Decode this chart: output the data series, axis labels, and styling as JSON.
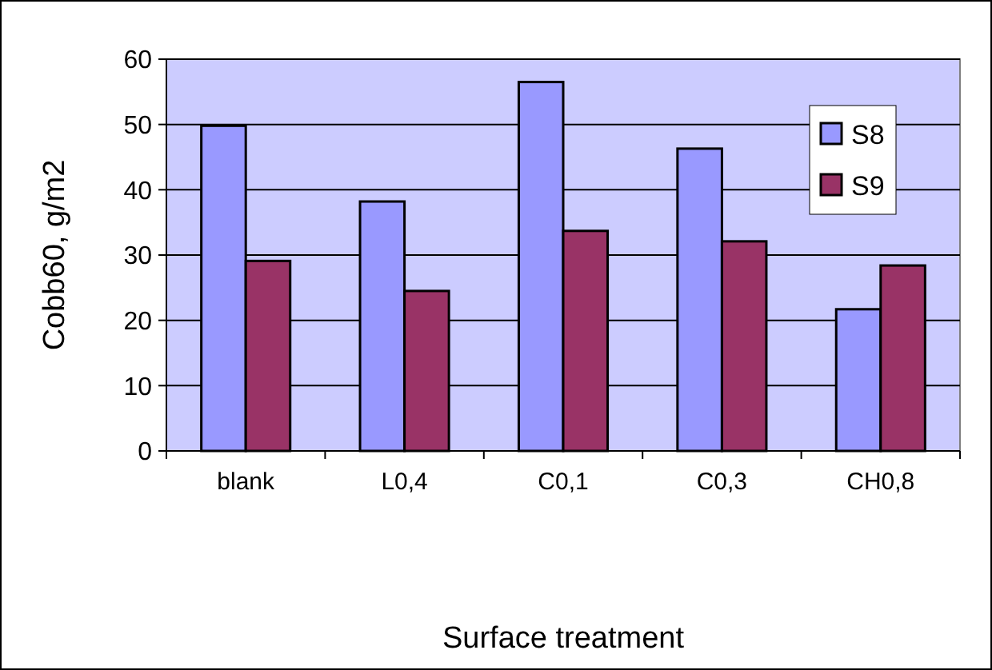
{
  "chart_data": {
    "type": "bar",
    "xlabel": "Surface treatment",
    "ylabel": "Cobb60, g/m2",
    "categories": [
      "blank",
      "L0,4",
      "C0,1",
      "C0,3",
      "CH0,8"
    ],
    "series": [
      {
        "name": "S8",
        "color": "#9999ff",
        "values": [
          49.8,
          38.2,
          56.5,
          46.3,
          21.7
        ]
      },
      {
        "name": "S9",
        "color": "#993366",
        "values": [
          29.1,
          24.5,
          33.7,
          32.1,
          28.4
        ]
      }
    ],
    "ylim": [
      0,
      60
    ],
    "yticks": [
      0,
      10,
      20,
      30,
      40,
      50,
      60
    ],
    "grid": "y",
    "legend": "top right"
  }
}
